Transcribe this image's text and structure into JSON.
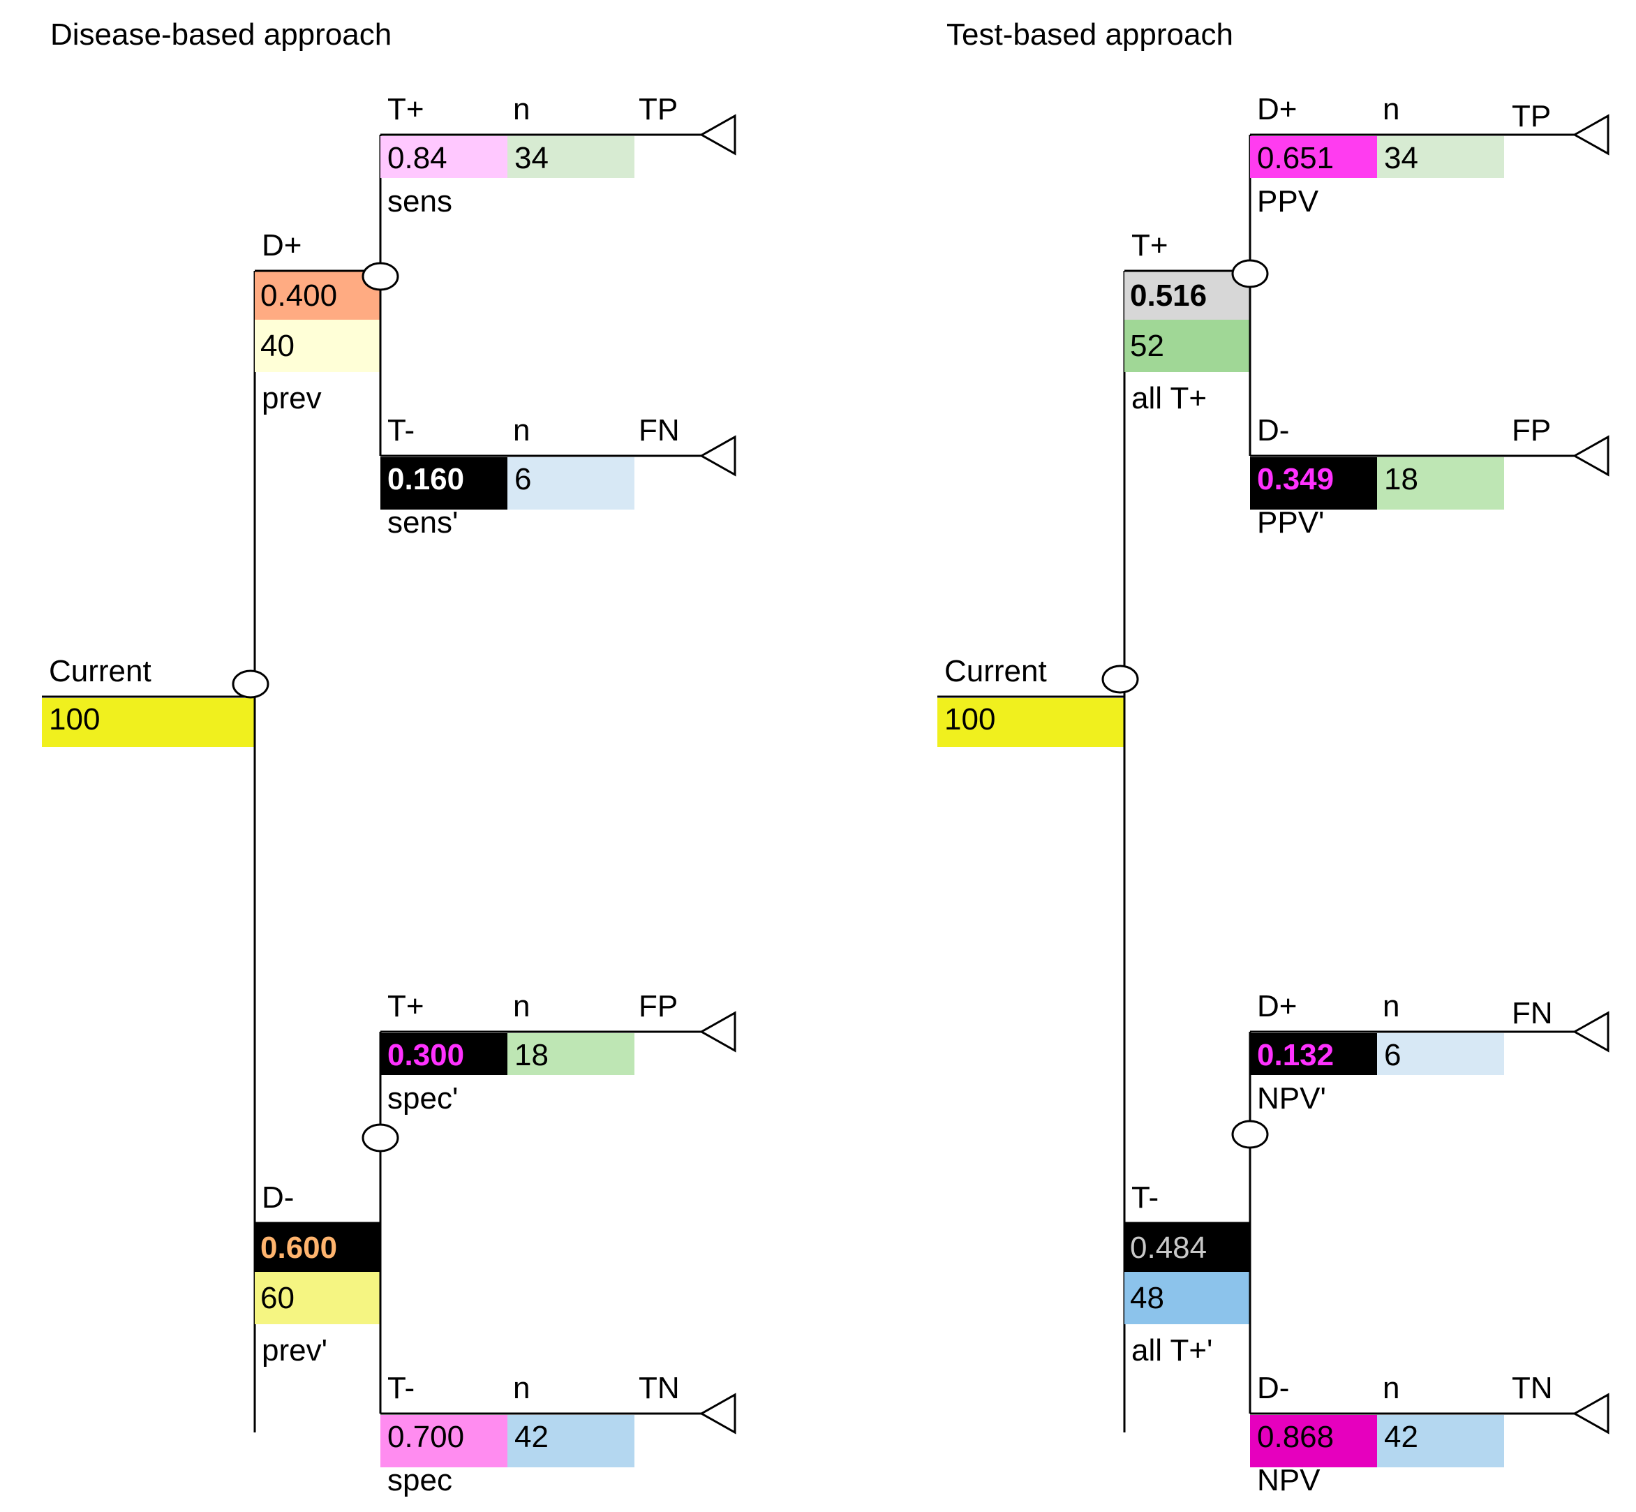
{
  "disease_tree": {
    "title": "Disease-based approach",
    "root": {
      "label": "Current",
      "value": "100",
      "color": "#f0f01e"
    },
    "branches": [
      {
        "head": "D+",
        "prob": "0.400",
        "prob_bg": "#ffab82",
        "prob_fg": "#000000",
        "prob_bold": false,
        "count": "40",
        "count_bg": "#ffffd7",
        "foot": "prev",
        "leaves": [
          {
            "head": "T+",
            "n_label": "n",
            "outcome": "TP",
            "prob": "0.84",
            "prob_bg": "#ffc8ff",
            "prob_fg": "#000000",
            "prob_bold": false,
            "count": "34",
            "count_bg": "#d7ebd2",
            "foot": "sens"
          },
          {
            "head": "T-",
            "n_label": "n",
            "outcome": "FN",
            "prob": "0.160",
            "prob_bg": "#000000",
            "prob_fg": "#ffffff",
            "prob_bold": true,
            "count": "6",
            "count_bg": "#d7e8f5",
            "foot": "sens'"
          }
        ]
      },
      {
        "head": "D-",
        "prob": "0.600",
        "prob_bg": "#000000",
        "prob_fg": "#ffb46e",
        "prob_bold": true,
        "count": "60",
        "count_bg": "#f5f582",
        "foot": "prev'",
        "leaves": [
          {
            "head": "T+",
            "n_label": "n",
            "outcome": "FP",
            "prob": "0.300",
            "prob_bg": "#000000",
            "prob_fg": "#ff32ff",
            "prob_bold": true,
            "count": "18",
            "count_bg": "#bee6b4",
            "foot": "spec'"
          },
          {
            "head": "T-",
            "n_label": "n",
            "outcome": "TN",
            "prob": "0.700",
            "prob_bg": "#ff8cf0",
            "prob_fg": "#000000",
            "prob_bold": false,
            "count": "42",
            "count_bg": "#b4d7f0",
            "foot": "spec"
          }
        ]
      }
    ]
  },
  "test_tree": {
    "title": "Test-based approach",
    "root": {
      "label": "Current",
      "value": "100",
      "color": "#f0f01e"
    },
    "branches": [
      {
        "head": "T+",
        "prob": "0.516",
        "prob_bg": "#d7d7d7",
        "prob_fg": "#000000",
        "prob_bold": true,
        "count": "52",
        "count_bg": "#a0d796",
        "foot": "all T+",
        "leaves": [
          {
            "head": "D+",
            "n_label": "n",
            "outcome": "TP",
            "prob": "0.651",
            "prob_bg": "#ff3cf0",
            "prob_fg": "#000000",
            "prob_bold": false,
            "count": "34",
            "count_bg": "#d7ebd2",
            "foot": "PPV"
          },
          {
            "head": "D-",
            "n_label": "",
            "outcome": "FP",
            "prob": "0.349",
            "prob_bg": "#000000",
            "prob_fg": "#ff32ff",
            "prob_bold": true,
            "count": "18",
            "count_bg": "#bee6b4",
            "foot": "PPV'"
          }
        ]
      },
      {
        "head": "T-",
        "prob": "0.484",
        "prob_bg": "#000000",
        "prob_fg": "#c8c8c8",
        "prob_bold": false,
        "count": "48",
        "count_bg": "#8cc3eb",
        "foot": "all T+'",
        "leaves": [
          {
            "head": "D+",
            "n_label": "n",
            "outcome": "FN",
            "prob": "0.132",
            "prob_bg": "#000000",
            "prob_fg": "#ff32ff",
            "prob_bold": true,
            "count": "6",
            "count_bg": "#d7e8f5",
            "foot": "NPV'"
          },
          {
            "head": "D-",
            "n_label": "n",
            "outcome": "TN",
            "prob": "0.868",
            "prob_bg": "#e600be",
            "prob_fg": "#000000",
            "prob_bold": false,
            "count": "42",
            "count_bg": "#b4d7f0",
            "foot": "NPV"
          }
        ]
      }
    ]
  }
}
